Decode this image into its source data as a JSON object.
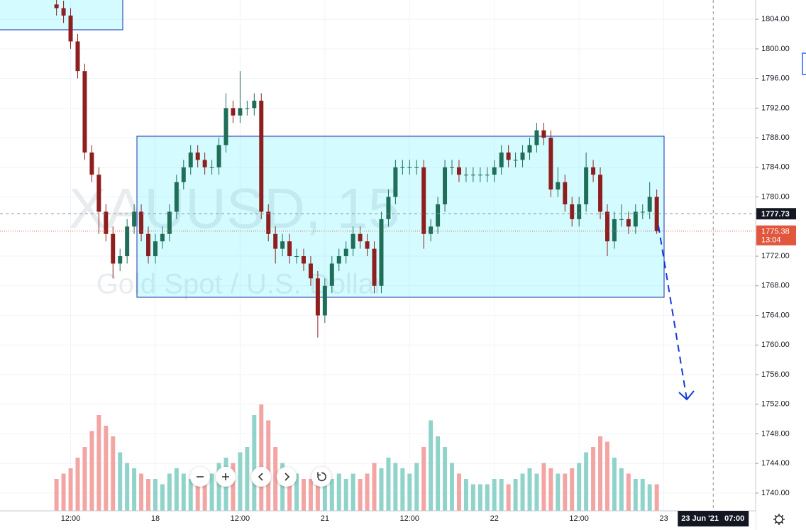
{
  "chart_data": {
    "type": "candlestick",
    "symbol_watermark": "XAUUSD, 15",
    "description_watermark": "Gold Spot / U.S. Dollar",
    "x": [
      10,
      11,
      12,
      13,
      14,
      15,
      16,
      17,
      18,
      19,
      20,
      21,
      22,
      23,
      24,
      25,
      26,
      27,
      28,
      29,
      30,
      31,
      32,
      33,
      34,
      35,
      36,
      37,
      38,
      39,
      40,
      41,
      42,
      43,
      44,
      45,
      46,
      47,
      48,
      49,
      50,
      51,
      52,
      53,
      54,
      55,
      56,
      57,
      58,
      59,
      60,
      61,
      62,
      63,
      64,
      65,
      66,
      67,
      68,
      69,
      70,
      71,
      72,
      73,
      74,
      75,
      76,
      77,
      78,
      79,
      80,
      81,
      82,
      83,
      84,
      85,
      86,
      87,
      88,
      89,
      90,
      91,
      92,
      93,
      94,
      95
    ],
    "open": [
      1806,
      1805.5,
      1804.5,
      1801,
      1797,
      1786,
      1783,
      1778,
      1775,
      1771,
      1772,
      1776,
      1778,
      1775,
      1772,
      1774,
      1775,
      1778,
      1782,
      1784,
      1786,
      1785,
      1784,
      1784,
      1787,
      1792,
      1791,
      1792,
      1792,
      1793,
      1778,
      1775,
      1773,
      1774,
      1772,
      1772,
      1771,
      1769,
      1764,
      1768,
      1771,
      1772,
      1773,
      1775,
      1774,
      1773,
      1768,
      1777,
      1780,
      1784,
      1784,
      1784,
      1784,
      1775,
      1776,
      1779,
      1784,
      1784,
      1783,
      1783,
      1783,
      1783,
      1783,
      1784,
      1786,
      1785,
      1785,
      1786,
      1787,
      1789,
      1788,
      1781,
      1782,
      1779,
      1777,
      1779,
      1784,
      1783,
      1778,
      1774,
      1777,
      1777,
      1776,
      1778,
      1778,
      1780
    ],
    "high": [
      1806.8,
      1806.5,
      1805.5,
      1802,
      1798,
      1787,
      1784,
      1779,
      1776,
      1773,
      1777,
      1779,
      1779,
      1776,
      1775,
      1776,
      1779,
      1783,
      1785,
      1787,
      1787,
      1786,
      1785,
      1788,
      1794,
      1793,
      1797,
      1793,
      1794,
      1794,
      1779,
      1776,
      1775,
      1775,
      1773,
      1773,
      1772,
      1770,
      1769,
      1772,
      1773,
      1774,
      1776,
      1776,
      1775,
      1774,
      1778,
      1781,
      1785,
      1785,
      1785,
      1785,
      1785,
      1777,
      1780,
      1785,
      1785,
      1785,
      1784,
      1784,
      1784,
      1784,
      1785,
      1787,
      1787,
      1786,
      1787,
      1788,
      1790,
      1790,
      1789,
      1784,
      1783,
      1780,
      1780,
      1786,
      1785,
      1784,
      1779,
      1778,
      1779,
      1778,
      1779,
      1779,
      1782,
      1781
    ],
    "low": [
      1804.5,
      1803.5,
      1800,
      1796,
      1785,
      1782,
      1775,
      1774,
      1769,
      1770,
      1771,
      1775,
      1774,
      1771,
      1771,
      1773,
      1774,
      1777,
      1781,
      1783,
      1784,
      1783,
      1783,
      1783,
      1786,
      1790,
      1790,
      1791,
      1791,
      1777,
      1774,
      1771,
      1772,
      1771,
      1771,
      1770,
      1768,
      1761,
      1763,
      1767,
      1770,
      1771,
      1772,
      1773,
      1772,
      1767,
      1767,
      1776,
      1779,
      1783,
      1783,
      1783,
      1773,
      1774,
      1775,
      1778,
      1783,
      1782,
      1782,
      1782,
      1782,
      1782,
      1782,
      1783,
      1784,
      1784,
      1784,
      1785,
      1786,
      1787,
      1780,
      1780,
      1778,
      1776,
      1776,
      1778,
      1782,
      1777,
      1772,
      1773,
      1776,
      1775,
      1775,
      1777,
      1777,
      1775
    ],
    "close": [
      1805.5,
      1804.5,
      1801,
      1797,
      1786,
      1783,
      1778,
      1775,
      1771,
      1772,
      1776,
      1778,
      1775,
      1772,
      1774,
      1775,
      1778,
      1782,
      1784,
      1786,
      1785,
      1784,
      1784,
      1787,
      1792,
      1791,
      1792,
      1792,
      1793,
      1778,
      1775,
      1773,
      1774,
      1772,
      1772,
      1771,
      1769,
      1764,
      1768,
      1771,
      1772,
      1773,
      1775,
      1774,
      1773,
      1768,
      1777,
      1780,
      1784,
      1784,
      1784,
      1784,
      1775,
      1776,
      1779,
      1784,
      1784,
      1783,
      1783,
      1783,
      1783,
      1783,
      1784,
      1786,
      1785,
      1785,
      1786,
      1787,
      1789,
      1788,
      1781,
      1782,
      1779,
      1777,
      1779,
      1784,
      1783,
      1778,
      1774,
      1777,
      1777,
      1776,
      1778,
      1778,
      1780,
      1775.38
    ],
    "volume": [
      30,
      35,
      40,
      50,
      60,
      75,
      90,
      80,
      70,
      55,
      45,
      40,
      35,
      30,
      30,
      25,
      35,
      40,
      35,
      30,
      30,
      25,
      35,
      45,
      50,
      45,
      55,
      60,
      90,
      100,
      85,
      60,
      45,
      40,
      35,
      30,
      30,
      35,
      25,
      30,
      35,
      30,
      35,
      30,
      35,
      45,
      40,
      50,
      45,
      40,
      35,
      45,
      60,
      85,
      70,
      60,
      45,
      35,
      30,
      25,
      25,
      25,
      30,
      30,
      25,
      30,
      35,
      40,
      35,
      45,
      40,
      35,
      35,
      40,
      45,
      55,
      60,
      70,
      65,
      50,
      40,
      35,
      30,
      30,
      25,
      25
    ],
    "up_color": "#1e6e58",
    "down_color": "#8e1f1f",
    "volume_up_color": "#8fd3cb",
    "volume_down_color": "#f2a5a3",
    "xlim": [
      2,
      109
    ],
    "xticks": [
      {
        "value": 12,
        "label": "12:00"
      },
      {
        "value": 24,
        "label": "18"
      },
      {
        "value": 36,
        "label": "12:00"
      },
      {
        "value": 48,
        "label": "21"
      },
      {
        "value": 60,
        "label": "12:00"
      },
      {
        "value": 72,
        "label": "22"
      },
      {
        "value": 84,
        "label": "12:00"
      },
      {
        "value": 96,
        "label": "23"
      }
    ],
    "ylim": [
      1737.6,
      1806.6
    ],
    "yticks": [
      {
        "value": 1740,
        "label": "1740.00"
      },
      {
        "value": 1744,
        "label": "1744.00"
      },
      {
        "value": 1748,
        "label": "1748.00"
      },
      {
        "value": 1752,
        "label": "1752.00"
      },
      {
        "value": 1756,
        "label": "1756.00"
      },
      {
        "value": 1760,
        "label": "1760.00"
      },
      {
        "value": 1764,
        "label": "1764.00"
      },
      {
        "value": 1768,
        "label": "1768.00"
      },
      {
        "value": 1772,
        "label": "1772.00"
      },
      {
        "value": 1780,
        "label": "1780.00"
      },
      {
        "value": 1784,
        "label": "1784.00"
      },
      {
        "value": 1788,
        "label": "1788.00"
      },
      {
        "value": 1792,
        "label": "1792.00"
      },
      {
        "value": 1796,
        "label": "1796.00"
      },
      {
        "value": 1800,
        "label": "1800.00"
      },
      {
        "value": 1804,
        "label": "1804.00"
      }
    ],
    "grid": true,
    "last_price": {
      "value": 1775.38,
      "label": "1775.38",
      "countdown": "13:04",
      "color": "#e0573d"
    },
    "crosshair": {
      "x": 103,
      "date_label": "23 Jun '21",
      "time_label": "07:00",
      "y": 1777.73,
      "y_label": "1777.73"
    }
  }
}
